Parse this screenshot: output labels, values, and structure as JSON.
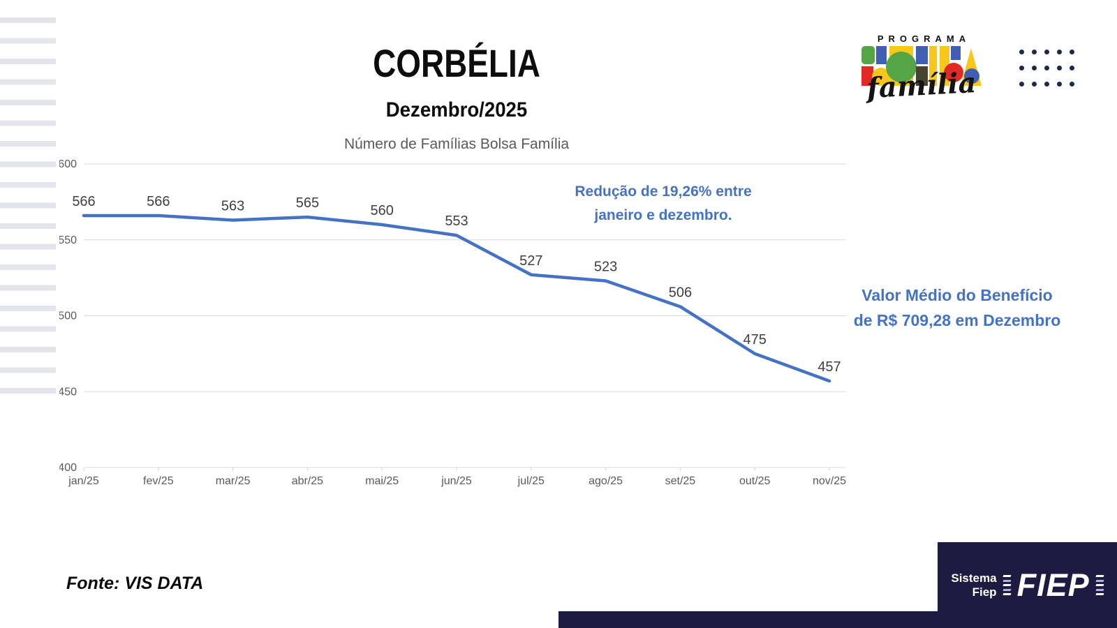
{
  "header": {
    "title": "CORBÉLIA",
    "subtitle": "Dezembro/2025",
    "chart_title": "Número de Famílias Bolsa Família"
  },
  "logo_bolsa": {
    "program_label": "PROGRAMA",
    "wordmark": "BOLSA",
    "script": "família",
    "colors": {
      "green": "#55a546",
      "blue": "#3f5eb4",
      "red": "#e12a26",
      "yellow": "#f8c719",
      "dark": "#474130"
    }
  },
  "annotations": {
    "reduction": {
      "line1": "Redução de 19,26% entre",
      "line2": "janeiro e dezembro.",
      "color": "#4472c4"
    },
    "avg_benefit": {
      "line1": "Valor Médio do Benefício",
      "line2": "de R$ 709,28 em Dezembro",
      "color": "#4472c4"
    }
  },
  "chart_data": {
    "type": "line",
    "title": "Número de Famílias Bolsa Família",
    "categories": [
      "jan/25",
      "fev/25",
      "mar/25",
      "abr/25",
      "mai/25",
      "jun/25",
      "jul/25",
      "ago/25",
      "set/25",
      "out/25",
      "nov/25"
    ],
    "values": [
      566,
      566,
      563,
      565,
      560,
      553,
      527,
      523,
      506,
      475,
      457
    ],
    "xlabel": "",
    "ylabel": "",
    "ylim": [
      400,
      600
    ],
    "yticks": [
      400,
      450,
      500,
      550,
      600
    ],
    "grid": true,
    "legend": "none",
    "line_color": "#4472c4",
    "grid_color": "#d9d9d9",
    "axis_color": "#595959",
    "label_color": "#3f3f3f"
  },
  "footer": {
    "source": "Fonte: VIS DATA"
  },
  "fiep_logo": {
    "line1": "Sistema",
    "line2": "Fiep",
    "acronym": "FIEP",
    "bg_color": "#1e1b42"
  }
}
